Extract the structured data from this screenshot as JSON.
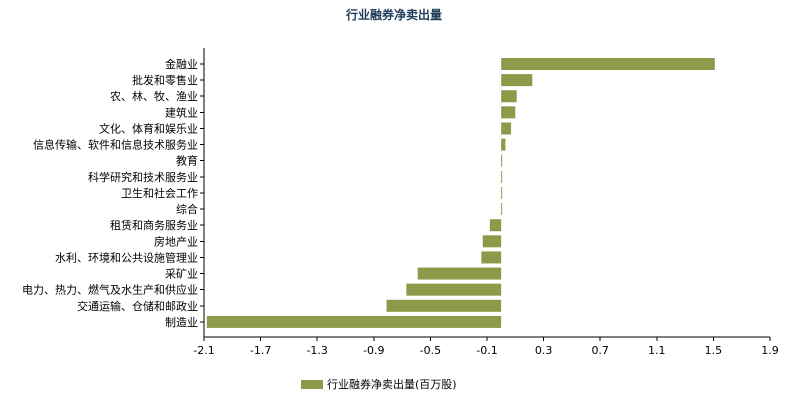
{
  "colors": {
    "bar": "#8c9a4a",
    "title": "#1f3c5a",
    "axis": "#000000"
  },
  "chart_data": {
    "type": "bar",
    "orientation": "horizontal",
    "title": "行业融券净卖出量",
    "categories": [
      "金融业",
      "批发和零售业",
      "农、林、牧、渔业",
      "建筑业",
      "文化、体育和娱乐业",
      "信息传输、软件和信息技术服务业",
      "教育",
      "科学研究和技术服务业",
      "卫生和社会工作",
      "综合",
      "租赁和商务服务业",
      "房地产业",
      "水利、环境和公共设施管理业",
      "采矿业",
      "电力、热力、燃气及水生产和供应业",
      "交通运输、仓储和邮政业",
      "制造业"
    ],
    "series": [
      {
        "name": "行业融券净卖出量(百万股)",
        "values": [
          1.51,
          0.22,
          0.11,
          0.1,
          0.07,
          0.03,
          0.005,
          0.005,
          0.005,
          0.0,
          -0.08,
          -0.13,
          -0.14,
          -0.59,
          -0.67,
          -0.81,
          -2.08
        ]
      }
    ],
    "xlim": [
      -2.1,
      1.9
    ],
    "xticks": [
      "-2.1",
      "-1.7",
      "-1.3",
      "-0.9",
      "-0.5",
      "-0.1",
      "0.3",
      "0.7",
      "1.1",
      "1.5",
      "1.9"
    ],
    "legend_position": "bottom",
    "grid": false
  }
}
